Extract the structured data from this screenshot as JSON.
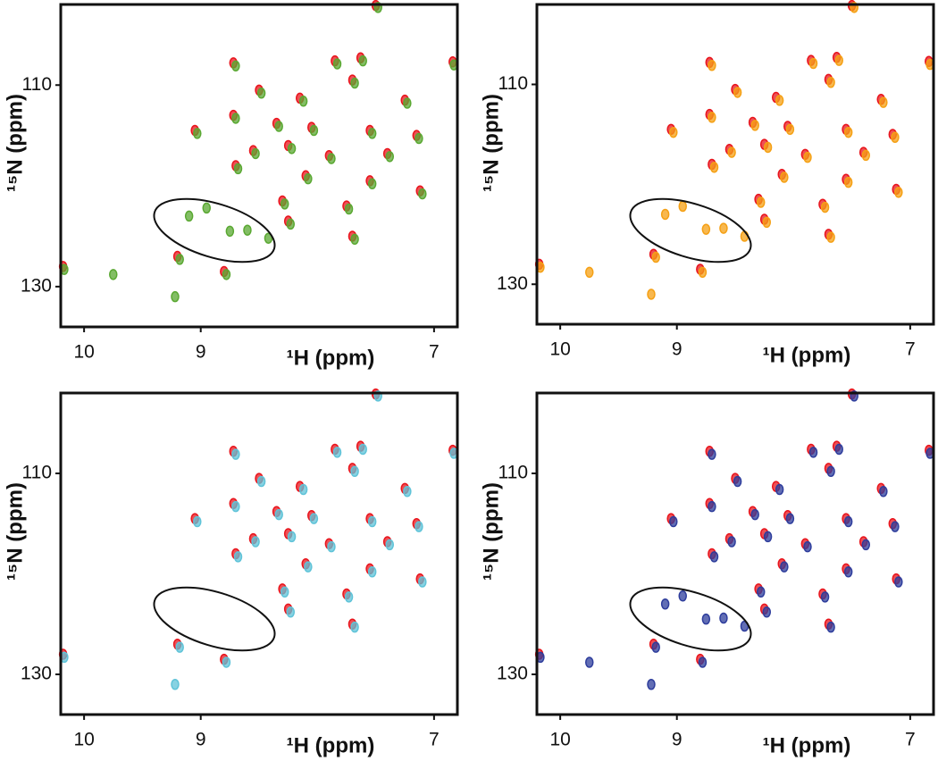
{
  "chart_data": [
    {
      "type": "scatter",
      "xlabel": "¹H (ppm)",
      "ylabel": "¹⁵N (ppm)",
      "xlim": [
        10.2,
        6.8
      ],
      "ylim": [
        102,
        134
      ],
      "xticks": [
        10,
        9,
        7
      ],
      "yticks": [
        110,
        130
      ],
      "series": [
        {
          "color": "#e8141c",
          "x": [
            7.5,
            8.72,
            7.85,
            7.63,
            6.84,
            8.5,
            8.15,
            7.7,
            7.25,
            9.05,
            8.72,
            8.35,
            8.05,
            7.55,
            7.15,
            8.55,
            8.25,
            7.9,
            7.4,
            8.7,
            8.1,
            7.55,
            7.12,
            8.3,
            7.75,
            8.25,
            7.7,
            9.2,
            8.8,
            10.18
          ],
          "values": [
            102.1,
            107.8,
            107.6,
            107.3,
            107.7,
            110.5,
            111.3,
            109.5,
            111.5,
            114.5,
            113.0,
            113.8,
            114.2,
            114.5,
            115.0,
            116.5,
            116.0,
            117.0,
            116.8,
            118.0,
            119.0,
            119.5,
            120.5,
            121.5,
            122.0,
            123.5,
            125.0,
            127.0,
            128.5,
            128.0
          ]
        },
        {
          "color": "#5aa832",
          "x": [
            7.48,
            8.7,
            7.83,
            7.61,
            6.83,
            8.48,
            8.12,
            7.68,
            7.23,
            9.03,
            8.7,
            8.33,
            8.03,
            7.53,
            7.13,
            8.53,
            8.22,
            7.88,
            7.38,
            8.68,
            8.08,
            7.53,
            7.1,
            8.28,
            7.73,
            8.23,
            7.68,
            9.18,
            8.78,
            10.17,
            9.1,
            8.95,
            8.75,
            8.6,
            8.42,
            9.75,
            9.22
          ],
          "values": [
            102.3,
            108.1,
            107.9,
            107.6,
            108.0,
            110.8,
            111.6,
            109.8,
            111.8,
            114.8,
            113.3,
            114.1,
            114.5,
            114.8,
            115.3,
            116.8,
            116.3,
            117.3,
            117.1,
            118.3,
            119.3,
            119.8,
            120.8,
            121.8,
            122.3,
            123.8,
            125.3,
            127.3,
            128.8,
            128.3,
            123.0,
            122.2,
            124.5,
            124.4,
            125.2,
            128.8,
            131.0
          ]
        }
      ]
    },
    {
      "type": "scatter",
      "xlabel": "¹H (ppm)",
      "ylabel": "¹⁵N (ppm)",
      "xlim": [
        10.2,
        6.8
      ],
      "ylim": [
        102,
        134
      ],
      "xticks": [
        10,
        9,
        7
      ],
      "yticks": [
        110,
        130
      ],
      "series": [
        {
          "color": "#e8141c",
          "x": [
            7.5,
            8.72,
            7.85,
            7.63,
            6.84,
            8.5,
            8.15,
            7.7,
            7.25,
            9.05,
            8.72,
            8.35,
            8.05,
            7.55,
            7.15,
            8.55,
            8.25,
            7.9,
            7.4,
            8.7,
            8.1,
            7.55,
            7.12,
            8.3,
            7.75,
            8.25,
            7.7,
            9.2,
            8.8,
            10.18
          ],
          "values": [
            102.1,
            107.8,
            107.6,
            107.3,
            107.7,
            110.5,
            111.3,
            109.5,
            111.5,
            114.5,
            113.0,
            113.8,
            114.2,
            114.5,
            115.0,
            116.5,
            116.0,
            117.0,
            116.8,
            118.0,
            119.0,
            119.5,
            120.5,
            121.5,
            122.0,
            123.5,
            125.0,
            127.0,
            128.5,
            128.0
          ]
        },
        {
          "color": "#f5a014",
          "x": [
            7.48,
            8.7,
            7.83,
            7.61,
            6.83,
            8.48,
            8.12,
            7.68,
            7.23,
            9.03,
            8.7,
            8.33,
            8.03,
            7.53,
            7.13,
            8.53,
            8.22,
            7.88,
            7.38,
            8.68,
            8.08,
            7.53,
            7.1,
            8.28,
            7.73,
            8.23,
            7.68,
            9.18,
            8.78,
            10.17,
            9.1,
            8.95,
            8.75,
            8.6,
            8.42,
            9.75,
            9.22
          ],
          "values": [
            102.3,
            108.1,
            107.9,
            107.6,
            108.0,
            110.8,
            111.6,
            109.8,
            111.8,
            114.8,
            113.3,
            114.1,
            114.5,
            114.8,
            115.3,
            116.8,
            116.3,
            117.3,
            117.1,
            118.3,
            119.3,
            119.8,
            120.8,
            121.8,
            122.3,
            123.8,
            125.3,
            127.3,
            128.8,
            128.3,
            123.0,
            122.2,
            124.5,
            124.4,
            125.2,
            128.8,
            131.0
          ]
        }
      ]
    },
    {
      "type": "scatter",
      "xlabel": "¹H (ppm)",
      "ylabel": "¹⁵N (ppm)",
      "xlim": [
        10.2,
        6.8
      ],
      "ylim": [
        102,
        134
      ],
      "xticks": [
        10,
        9,
        7
      ],
      "yticks": [
        110,
        130
      ],
      "series": [
        {
          "color": "#e8141c",
          "x": [
            7.5,
            8.72,
            7.85,
            7.63,
            6.84,
            8.5,
            8.15,
            7.7,
            7.25,
            9.05,
            8.72,
            8.35,
            8.05,
            7.55,
            7.15,
            8.55,
            8.25,
            7.9,
            7.4,
            8.7,
            8.1,
            7.55,
            7.12,
            8.3,
            7.75,
            8.25,
            7.7,
            9.2,
            8.8,
            10.18
          ],
          "values": [
            102.1,
            107.8,
            107.6,
            107.3,
            107.7,
            110.5,
            111.3,
            109.5,
            111.5,
            114.5,
            113.0,
            113.8,
            114.2,
            114.5,
            115.0,
            116.5,
            116.0,
            117.0,
            116.8,
            118.0,
            119.0,
            119.5,
            120.5,
            121.5,
            122.0,
            123.5,
            125.0,
            127.0,
            128.5,
            128.0
          ]
        },
        {
          "color": "#5fc3d8",
          "x": [
            7.48,
            8.7,
            7.83,
            7.61,
            6.83,
            8.48,
            8.12,
            7.68,
            7.23,
            9.03,
            8.7,
            8.33,
            8.03,
            7.53,
            7.13,
            8.53,
            8.22,
            7.88,
            7.38,
            8.68,
            8.08,
            7.53,
            7.1,
            8.28,
            7.73,
            8.23,
            7.68,
            9.18,
            8.78,
            10.17,
            9.22
          ],
          "values": [
            102.3,
            108.1,
            107.9,
            107.6,
            108.0,
            110.8,
            111.6,
            109.8,
            111.8,
            114.8,
            113.3,
            114.1,
            114.5,
            114.8,
            115.3,
            116.8,
            116.3,
            117.3,
            117.1,
            118.3,
            119.3,
            119.8,
            120.8,
            121.8,
            122.3,
            123.8,
            125.3,
            127.3,
            128.8,
            128.3,
            131.0
          ]
        }
      ]
    },
    {
      "type": "scatter",
      "xlabel": "¹H (ppm)",
      "ylabel": "¹⁵N (ppm)",
      "xlim": [
        10.2,
        6.8
      ],
      "ylim": [
        102,
        134
      ],
      "xticks": [
        10,
        9,
        7
      ],
      "yticks": [
        110,
        130
      ],
      "series": [
        {
          "color": "#e8141c",
          "x": [
            7.5,
            8.72,
            7.85,
            7.63,
            6.84,
            8.5,
            8.15,
            7.7,
            7.25,
            9.05,
            8.72,
            8.35,
            8.05,
            7.55,
            7.15,
            8.55,
            8.25,
            7.9,
            7.4,
            8.7,
            8.1,
            7.55,
            7.12,
            8.3,
            7.75,
            8.25,
            7.7,
            9.2,
            8.8,
            10.18
          ],
          "values": [
            102.1,
            107.8,
            107.6,
            107.3,
            107.7,
            110.5,
            111.3,
            109.5,
            111.5,
            114.5,
            113.0,
            113.8,
            114.2,
            114.5,
            115.0,
            116.5,
            116.0,
            117.0,
            116.8,
            118.0,
            119.0,
            119.5,
            120.5,
            121.5,
            122.0,
            123.5,
            125.0,
            127.0,
            128.5,
            128.0
          ]
        },
        {
          "color": "#2e3d9c",
          "x": [
            7.48,
            8.7,
            7.83,
            7.61,
            6.83,
            8.48,
            8.12,
            7.68,
            7.23,
            9.03,
            8.7,
            8.33,
            8.03,
            7.53,
            7.13,
            8.53,
            8.22,
            7.88,
            7.38,
            8.68,
            8.08,
            7.53,
            7.1,
            8.28,
            7.73,
            8.23,
            7.68,
            9.18,
            8.78,
            10.17,
            9.1,
            8.95,
            8.75,
            8.6,
            8.42,
            9.75,
            9.22
          ],
          "values": [
            102.3,
            108.1,
            107.9,
            107.6,
            108.0,
            110.8,
            111.6,
            109.8,
            111.8,
            114.8,
            113.3,
            114.1,
            114.5,
            114.8,
            115.3,
            116.8,
            116.3,
            117.3,
            117.1,
            118.3,
            119.3,
            119.8,
            120.8,
            121.8,
            122.3,
            123.8,
            125.3,
            127.3,
            128.8,
            128.3,
            123.0,
            122.2,
            124.5,
            124.4,
            125.2,
            128.8,
            131.0
          ]
        }
      ]
    }
  ]
}
